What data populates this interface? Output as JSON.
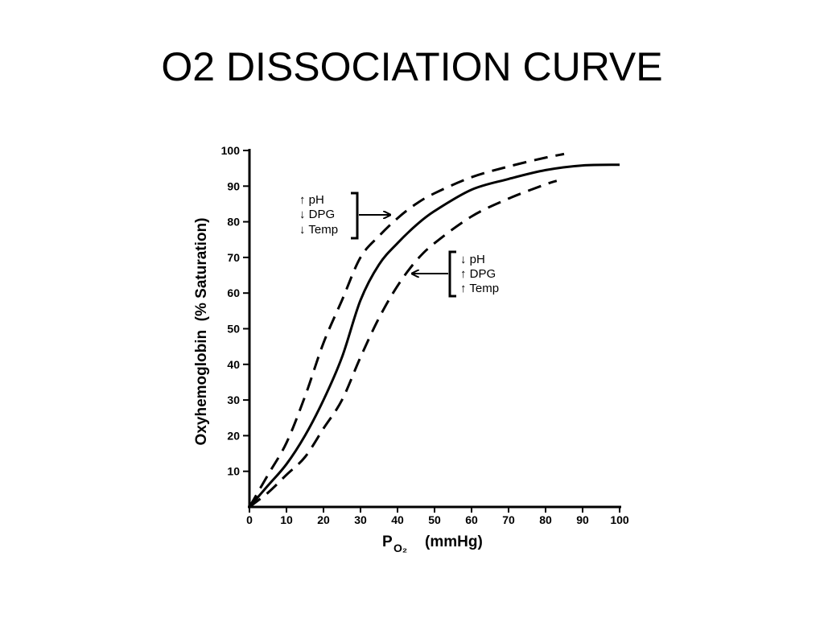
{
  "slide": {
    "title": "O2 DISSOCIATION CURVE"
  },
  "chart_data": {
    "type": "line",
    "title": "",
    "xlabel_main": "P",
    "xlabel_sub": "O₂",
    "xlabel_unit": "(mmHg)",
    "ylabel": "Oxyhemoglobin  (% Saturation)",
    "xlim": [
      0,
      100
    ],
    "ylim": [
      0,
      100
    ],
    "xticks": [
      "0",
      "10",
      "20",
      "30",
      "40",
      "50",
      "60",
      "70",
      "80",
      "90",
      "100"
    ],
    "yticks": [
      "10",
      "20",
      "30",
      "40",
      "50",
      "60",
      "70",
      "80",
      "90",
      "100"
    ],
    "grid": false,
    "series": [
      {
        "style": "solid",
        "x": [
          0,
          5,
          10,
          15,
          20,
          25,
          30,
          35,
          40,
          45,
          50,
          60,
          70,
          80,
          90,
          100
        ],
        "y": [
          0,
          6,
          12,
          20,
          30,
          42,
          58,
          68,
          74,
          79,
          83,
          89,
          92,
          94.5,
          95.8,
          96
        ]
      },
      {
        "style": "dashed",
        "x": [
          0,
          5,
          10,
          15,
          20,
          25,
          30,
          35,
          40,
          45,
          50,
          60,
          70,
          80,
          85
        ],
        "y": [
          0,
          9,
          18,
          31,
          46,
          58,
          70,
          76,
          81,
          85,
          88,
          92.5,
          95.5,
          98,
          99
        ]
      },
      {
        "style": "dashed",
        "x": [
          0,
          5,
          10,
          15,
          20,
          25,
          30,
          35,
          40,
          45,
          50,
          60,
          70,
          80,
          83
        ],
        "y": [
          0,
          4,
          9,
          14,
          22,
          30,
          42,
          53,
          62,
          69,
          74,
          81.5,
          86.5,
          90.5,
          91.5
        ]
      }
    ],
    "annotations": [
      {
        "id": "left",
        "lines": [
          "↑ pH",
          "↓ DPG",
          "↓ Temp"
        ]
      },
      {
        "id": "right",
        "lines": [
          "↓ pH",
          "↑ DPG",
          "↑ Temp"
        ]
      }
    ]
  }
}
